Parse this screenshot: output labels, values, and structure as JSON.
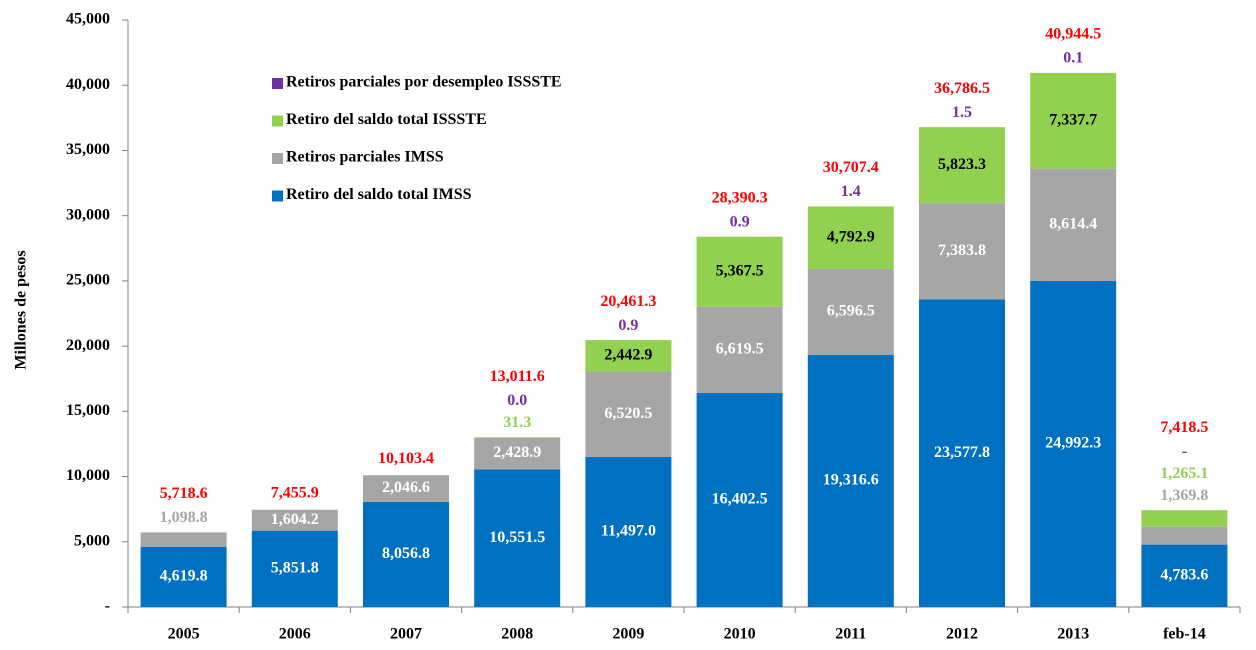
{
  "chart_data": {
    "type": "stacked_bar",
    "y_label": "Millones de pesos",
    "categories": [
      "2005",
      "2006",
      "2007",
      "2008",
      "2009",
      "2010",
      "2011",
      "2012",
      "2013",
      "feb-14"
    ],
    "ylim": [
      0,
      45000
    ],
    "yticks": [
      {
        "value": 0,
        "label": "-"
      },
      {
        "value": 5000,
        "label": "5,000"
      },
      {
        "value": 10000,
        "label": "10,000"
      },
      {
        "value": 15000,
        "label": "15,000"
      },
      {
        "value": 20000,
        "label": "20,000"
      },
      {
        "value": 25000,
        "label": "25,000"
      },
      {
        "value": 30000,
        "label": "30,000"
      },
      {
        "value": 35000,
        "label": "35,000"
      },
      {
        "value": 40000,
        "label": "40,000"
      },
      {
        "value": 45000,
        "label": "45,000"
      }
    ],
    "series": [
      {
        "name": "Retiro del saldo total IMSS",
        "color": "#0070c0",
        "label_color": "#ffffff",
        "values": [
          4619.8,
          5851.8,
          8056.8,
          10551.5,
          11497.0,
          16402.5,
          19316.6,
          23577.8,
          24992.3,
          4783.6
        ],
        "value_labels": [
          "4,619.8",
          "5,851.8",
          "8,056.8",
          "10,551.5",
          "11,497.0",
          "16,402.5",
          "19,316.6",
          "23,577.8",
          "24,992.3",
          "4,783.6"
        ]
      },
      {
        "name": "Retiros parciales IMSS",
        "color": "#a6a6a6",
        "label_color": "#ffffff",
        "values": [
          1098.8,
          1604.2,
          2046.6,
          2428.9,
          6520.5,
          6619.5,
          6596.5,
          7383.8,
          8614.4,
          1369.8
        ],
        "value_labels": [
          "1,098.8",
          "1,604.2",
          "2,046.6",
          "2,428.9",
          "6,520.5",
          "6,619.5",
          "6,596.5",
          "7,383.8",
          "8,614.4",
          "1,369.8"
        ]
      },
      {
        "name": "Retiro del saldo total ISSSTE",
        "color": "#92d050",
        "label_color": "#000000",
        "values": [
          null,
          null,
          null,
          31.3,
          2442.9,
          5367.5,
          4792.9,
          5823.3,
          7337.7,
          1265.1
        ],
        "value_labels": [
          null,
          null,
          null,
          "31.3",
          "2,442.9",
          "5,367.5",
          "4,792.9",
          "5,823.3",
          "7,337.7",
          "1,265.1"
        ]
      },
      {
        "name": "Retiros parciales por desempleo ISSSTE",
        "color": "#7030a0",
        "label_color": "#7030a0",
        "values": [
          null,
          null,
          null,
          0.0,
          0.9,
          0.9,
          1.4,
          1.5,
          0.1,
          0
        ],
        "value_labels": [
          null,
          null,
          null,
          "0.0",
          "0.9",
          "0.9",
          "1.4",
          "1.5",
          "0.1",
          "-"
        ]
      }
    ],
    "totals": {
      "color": "#ff0000",
      "values": [
        5718.6,
        7455.9,
        10103.4,
        13011.6,
        20461.3,
        28390.3,
        30707.4,
        36786.5,
        40944.5,
        7418.5
      ],
      "value_labels": [
        "5,718.6",
        "7,455.9",
        "10,103.4",
        "13,011.6",
        "20,461.3",
        "28,390.3",
        "30,707.4",
        "36,786.5",
        "40,944.5",
        "7,418.5"
      ]
    }
  }
}
